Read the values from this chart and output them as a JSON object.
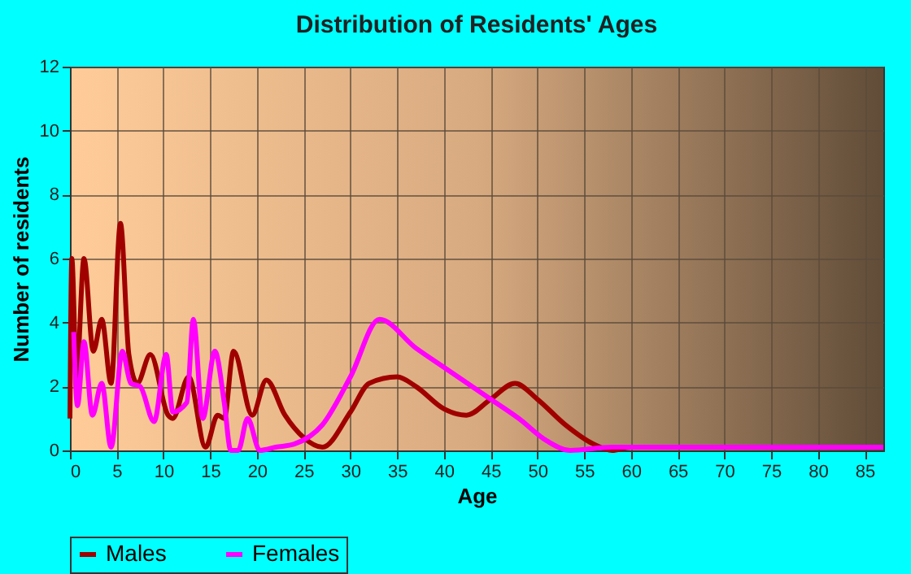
{
  "chart_data": {
    "type": "line",
    "title": "Distribution of Residents' Ages",
    "xlabel": "Age",
    "ylabel": "Number of residents",
    "xlim": [
      0,
      87
    ],
    "xticks": [
      0,
      5,
      10,
      15,
      20,
      25,
      30,
      35,
      40,
      45,
      50,
      55,
      60,
      65,
      70,
      75,
      80,
      85
    ],
    "ylim": [
      0,
      12
    ],
    "yticks": [
      0,
      2,
      4,
      6,
      8,
      10,
      12
    ],
    "grid": true,
    "legend": "bottom",
    "marker": "none",
    "line_style": "solid",
    "series": [
      {
        "name": "Males",
        "color": "#a00000",
        "x": [
          0,
          0.2,
          0.7,
          1.5,
          2.5,
          3.4,
          4.4,
          5.4,
          6.3,
          7.2,
          8.6,
          10.5,
          11,
          12.7,
          14.5,
          15.8,
          16.5,
          17.5,
          19.5,
          21,
          23,
          25,
          27,
          30,
          32,
          35,
          37,
          40,
          42.4,
          45,
          47.6,
          50,
          53,
          56,
          58,
          60,
          70,
          87
        ],
        "values": [
          1,
          6,
          2.3,
          6,
          3.1,
          4.1,
          2.1,
          7.1,
          3,
          2.1,
          3,
          1.1,
          1,
          2.3,
          0.1,
          1.1,
          1,
          3.1,
          1.1,
          2.2,
          1.1,
          0.4,
          0.1,
          1.2,
          2.1,
          2.3,
          2,
          1.3,
          1.1,
          1.6,
          2.1,
          1.6,
          0.8,
          0.2,
          0,
          0.1,
          0.1,
          0.1
        ]
      },
      {
        "name": "Females",
        "color": "#ff00ff",
        "x": [
          0.4,
          0.8,
          1.5,
          2.4,
          3.4,
          4.4,
          5.6,
          6.5,
          7.5,
          9,
          10.3,
          11,
          12.5,
          13.2,
          14.2,
          15.5,
          16.5,
          17.2,
          18,
          19,
          20.3,
          22,
          24,
          27,
          30,
          33.1,
          37,
          40,
          45,
          48,
          51,
          53.5,
          58,
          87
        ],
        "values": [
          3.7,
          1.4,
          3.4,
          1.1,
          2.1,
          0.1,
          3.1,
          2.1,
          2,
          0.9,
          3,
          1.2,
          1.5,
          4.1,
          1,
          3.1,
          1.5,
          0,
          0,
          1,
          0,
          0.1,
          0.2,
          0.8,
          2.3,
          4.1,
          3.2,
          2.6,
          1.6,
          1,
          0.3,
          0,
          0.1,
          0.1
        ]
      }
    ]
  }
}
